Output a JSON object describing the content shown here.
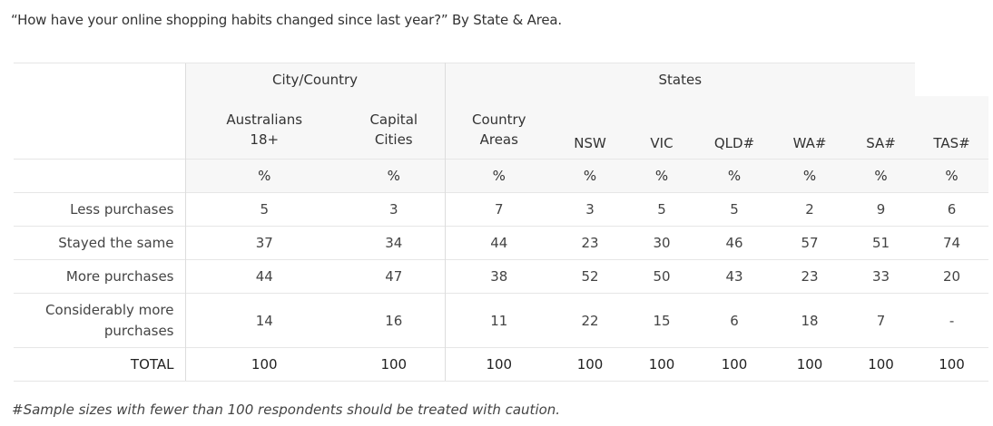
{
  "title": "“How have your online shopping habits changed since last year?” By State & Area.",
  "groups": {
    "city_country": "City/Country",
    "states": "States"
  },
  "columns": [
    {
      "line1": "Australians",
      "line2": "18+"
    },
    {
      "line1": "Capital",
      "line2": "Cities"
    },
    {
      "line1": "Country",
      "line2": "Areas"
    },
    {
      "line1": "",
      "line2": "NSW"
    },
    {
      "line1": "",
      "line2": "VIC"
    },
    {
      "line1": "",
      "line2": "QLD#"
    },
    {
      "line1": "",
      "line2": "WA#"
    },
    {
      "line1": "",
      "line2": "SA#"
    },
    {
      "line1": "",
      "line2": "TAS#"
    }
  ],
  "unit_symbol": "%",
  "rows": [
    {
      "label": "Less purchases",
      "values": [
        "5",
        "3",
        "7",
        "3",
        "5",
        "5",
        "2",
        "9",
        "6"
      ]
    },
    {
      "label": "Stayed the same",
      "values": [
        "37",
        "34",
        "44",
        "23",
        "30",
        "46",
        "57",
        "51",
        "74"
      ]
    },
    {
      "label": "More purchases",
      "values": [
        "44",
        "47",
        "38",
        "52",
        "50",
        "43",
        "23",
        "33",
        "20"
      ]
    },
    {
      "label": "Considerably more purchases",
      "values": [
        "14",
        "16",
        "11",
        "22",
        "15",
        "6",
        "18",
        "7",
        "-"
      ]
    },
    {
      "label": "TOTAL",
      "values": [
        "100",
        "100",
        "100",
        "100",
        "100",
        "100",
        "100",
        "100",
        "100"
      ]
    }
  ],
  "footnote": "#Sample sizes with fewer than 100 respondents should be treated with caution."
}
